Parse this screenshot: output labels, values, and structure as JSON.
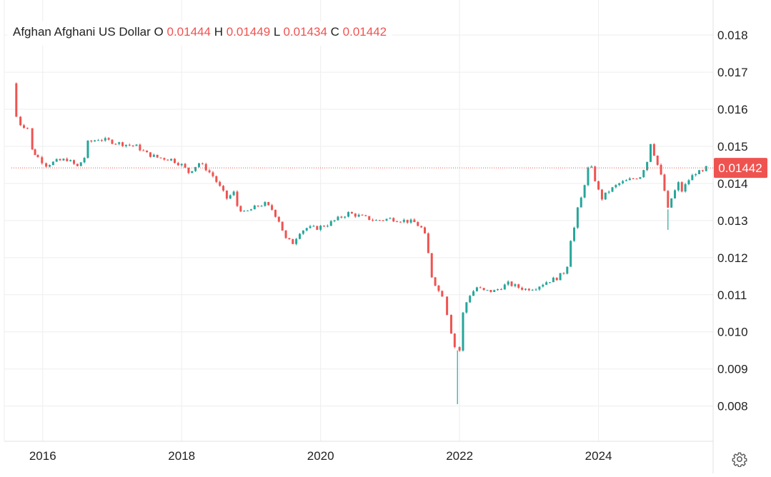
{
  "legend": {
    "title": "Afghan Afghani US Dollar",
    "o_label": "O",
    "o_value": "0.01444",
    "h_label": "H",
    "h_value": "0.01449",
    "l_label": "L",
    "l_value": "0.01434",
    "c_label": "C",
    "c_value": "0.01442"
  },
  "colors": {
    "up": "#26a69a",
    "down": "#ef5350",
    "grid": "#eeeeee",
    "axis_text": "#222222",
    "price_tag": "#ef5350"
  },
  "icons": {
    "settings": "gear-icon"
  },
  "chart_data": {
    "type": "candlestick",
    "title": "Afghan Afghani US Dollar",
    "x_tick_labels": [
      "2016",
      "2018",
      "2020",
      "2022",
      "2024"
    ],
    "y_tick_labels": [
      "0.008",
      "0.009",
      "0.010",
      "0.011",
      "0.012",
      "0.013",
      "0.014",
      "0.015",
      "0.016",
      "0.017",
      "0.018"
    ],
    "xlim": [
      2015.55,
      2025.65
    ],
    "ylim": [
      0.00705,
      0.01883
    ],
    "grid": true,
    "last_price": "0.01442",
    "last_price_value": 0.01442,
    "series": [
      {
        "t": 2015.55,
        "c": 0.0167
      },
      {
        "t": 2015.62,
        "c": 0.0158
      },
      {
        "t": 2015.68,
        "c": 0.0156
      },
      {
        "t": 2015.78,
        "c": 0.0155
      },
      {
        "t": 2015.85,
        "c": 0.0149
      },
      {
        "t": 2015.93,
        "c": 0.0147
      },
      {
        "t": 2016.05,
        "c": 0.0145
      },
      {
        "t": 2016.2,
        "c": 0.0146
      },
      {
        "t": 2016.35,
        "c": 0.01465
      },
      {
        "t": 2016.5,
        "c": 0.01445
      },
      {
        "t": 2016.6,
        "c": 0.0147
      },
      {
        "t": 2016.65,
        "c": 0.0151
      },
      {
        "t": 2016.8,
        "c": 0.0152
      },
      {
        "t": 2016.95,
        "c": 0.01515
      },
      {
        "t": 2017.05,
        "c": 0.0151
      },
      {
        "t": 2017.2,
        "c": 0.01505
      },
      {
        "t": 2017.35,
        "c": 0.015
      },
      {
        "t": 2017.5,
        "c": 0.0148
      },
      {
        "t": 2017.65,
        "c": 0.0147
      },
      {
        "t": 2017.85,
        "c": 0.01465
      },
      {
        "t": 2018.0,
        "c": 0.0145
      },
      {
        "t": 2018.1,
        "c": 0.0143
      },
      {
        "t": 2018.25,
        "c": 0.01455
      },
      {
        "t": 2018.35,
        "c": 0.0144
      },
      {
        "t": 2018.45,
        "c": 0.0142
      },
      {
        "t": 2018.55,
        "c": 0.0139
      },
      {
        "t": 2018.65,
        "c": 0.0136
      },
      {
        "t": 2018.75,
        "c": 0.01375
      },
      {
        "t": 2018.8,
        "c": 0.0134
      },
      {
        "t": 2018.9,
        "c": 0.0132
      },
      {
        "t": 2019.0,
        "c": 0.0133
      },
      {
        "t": 2019.1,
        "c": 0.0134
      },
      {
        "t": 2019.2,
        "c": 0.01345
      },
      {
        "t": 2019.3,
        "c": 0.0133
      },
      {
        "t": 2019.4,
        "c": 0.013
      },
      {
        "t": 2019.5,
        "c": 0.0125
      },
      {
        "t": 2019.6,
        "c": 0.0124
      },
      {
        "t": 2019.7,
        "c": 0.0127
      },
      {
        "t": 2019.8,
        "c": 0.0128
      },
      {
        "t": 2019.95,
        "c": 0.0128
      },
      {
        "t": 2020.1,
        "c": 0.0129
      },
      {
        "t": 2020.25,
        "c": 0.01305
      },
      {
        "t": 2020.4,
        "c": 0.0132
      },
      {
        "t": 2020.6,
        "c": 0.0131
      },
      {
        "t": 2020.8,
        "c": 0.013
      },
      {
        "t": 2021.0,
        "c": 0.01305
      },
      {
        "t": 2021.2,
        "c": 0.013
      },
      {
        "t": 2021.35,
        "c": 0.01295
      },
      {
        "t": 2021.45,
        "c": 0.0128
      },
      {
        "t": 2021.5,
        "c": 0.0126
      },
      {
        "t": 2021.55,
        "c": 0.0121
      },
      {
        "t": 2021.6,
        "c": 0.0115
      },
      {
        "t": 2021.65,
        "c": 0.0113
      },
      {
        "t": 2021.7,
        "c": 0.0111
      },
      {
        "t": 2021.75,
        "c": 0.011
      },
      {
        "t": 2021.82,
        "c": 0.0105
      },
      {
        "t": 2021.88,
        "c": 0.01
      },
      {
        "t": 2021.93,
        "c": 0.0096
      },
      {
        "t": 2022.0,
        "c": 0.0095
      },
      {
        "t": 2022.05,
        "c": 0.0105
      },
      {
        "t": 2022.1,
        "c": 0.0108
      },
      {
        "t": 2022.15,
        "c": 0.011
      },
      {
        "t": 2022.25,
        "c": 0.0112
      },
      {
        "t": 2022.35,
        "c": 0.0111
      },
      {
        "t": 2022.5,
        "c": 0.0111
      },
      {
        "t": 2022.6,
        "c": 0.0112
      },
      {
        "t": 2022.7,
        "c": 0.0113
      },
      {
        "t": 2022.85,
        "c": 0.0112
      },
      {
        "t": 2022.95,
        "c": 0.01115
      },
      {
        "t": 2023.1,
        "c": 0.0112
      },
      {
        "t": 2023.25,
        "c": 0.01135
      },
      {
        "t": 2023.4,
        "c": 0.01145
      },
      {
        "t": 2023.5,
        "c": 0.0116
      },
      {
        "t": 2023.55,
        "c": 0.0118
      },
      {
        "t": 2023.6,
        "c": 0.0125
      },
      {
        "t": 2023.65,
        "c": 0.0128
      },
      {
        "t": 2023.7,
        "c": 0.0133
      },
      {
        "t": 2023.75,
        "c": 0.0136
      },
      {
        "t": 2023.8,
        "c": 0.014
      },
      {
        "t": 2023.85,
        "c": 0.0144
      },
      {
        "t": 2023.9,
        "c": 0.0144
      },
      {
        "t": 2024.0,
        "c": 0.0138
      },
      {
        "t": 2024.05,
        "c": 0.0136
      },
      {
        "t": 2024.15,
        "c": 0.0138
      },
      {
        "t": 2024.3,
        "c": 0.014
      },
      {
        "t": 2024.45,
        "c": 0.0141
      },
      {
        "t": 2024.6,
        "c": 0.0142
      },
      {
        "t": 2024.7,
        "c": 0.0146
      },
      {
        "t": 2024.75,
        "c": 0.0151
      },
      {
        "t": 2024.8,
        "c": 0.0148
      },
      {
        "t": 2024.85,
        "c": 0.0145
      },
      {
        "t": 2024.9,
        "c": 0.0142
      },
      {
        "t": 2024.95,
        "c": 0.0138
      },
      {
        "t": 2025.0,
        "c": 0.0133
      },
      {
        "t": 2025.05,
        "c": 0.0136
      },
      {
        "t": 2025.1,
        "c": 0.0138
      },
      {
        "t": 2025.15,
        "c": 0.014
      },
      {
        "t": 2025.2,
        "c": 0.0138
      },
      {
        "t": 2025.3,
        "c": 0.0141
      },
      {
        "t": 2025.4,
        "c": 0.0143
      },
      {
        "t": 2025.5,
        "c": 0.0143
      },
      {
        "t": 2025.55,
        "c": 0.01442
      }
    ],
    "spike_lows": [
      {
        "t": 2021.97,
        "v": 0.00805
      },
      {
        "t": 2025.0,
        "v": 0.01275
      }
    ]
  }
}
